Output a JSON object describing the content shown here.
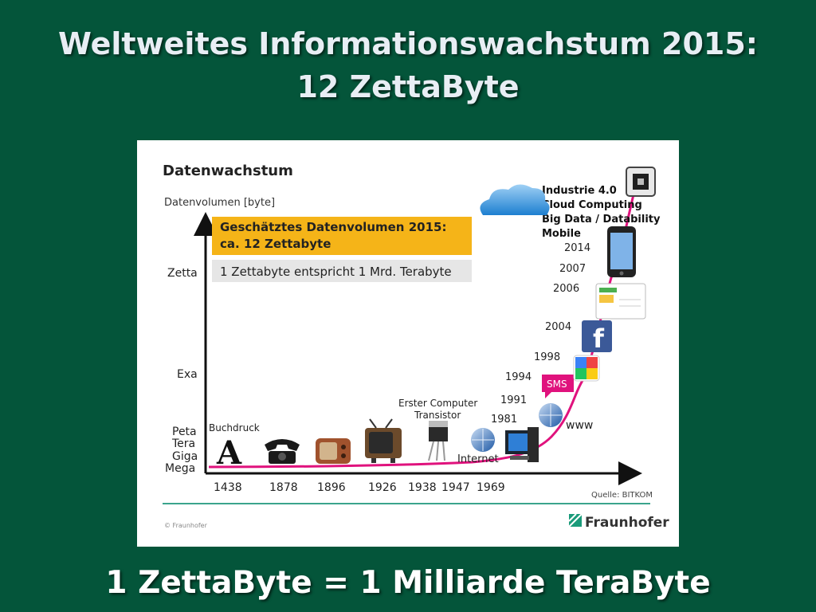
{
  "slide": {
    "title_line1": "Weltweites Informationswachstum 2015:",
    "title_line2": "12 ZettaByte",
    "footer": "1 ZettaByte = 1 Milliarde TeraByte"
  },
  "colors": {
    "background": "#04553a",
    "growth_curve": "#e0127d",
    "highlight_box": "#f5b418",
    "note_box": "#e6e6e6",
    "rule_line": "#3aa48c"
  },
  "chart_data": {
    "type": "line",
    "title": "Datenwachstum",
    "ylabel": "Datenvolumen [byte]",
    "yticks": [
      "Mega",
      "Giga",
      "Tera",
      "Peta",
      "Exa",
      "Zetta"
    ],
    "xticks": [
      "1438",
      "1878",
      "1896",
      "1926",
      "1938",
      "1947",
      "1969"
    ],
    "milestones_upper": [
      "1981",
      "1991",
      "1994",
      "1998",
      "2004",
      "2006",
      "2007",
      "2014"
    ],
    "annotations": {
      "buchdruck": "Buchdruck",
      "computer_line1": "Erster Computer",
      "computer_line2": "Transistor",
      "internet": "Internet",
      "www": "www",
      "sms": "SMS"
    },
    "era_labels": [
      "Industrie 4.0",
      "Cloud Computing",
      "Big Data / Datability",
      "Mobile"
    ],
    "highlight_line1": "Geschätztes Datenvolumen 2015:",
    "highlight_line2": "ca. 12 Zettabyte",
    "note": "1 Zettabyte entspricht 1 Mrd. Terabyte",
    "source": "Quelle: BITKOM",
    "copyright": "© Fraunhofer",
    "logo_text": "Fraunhofer"
  }
}
